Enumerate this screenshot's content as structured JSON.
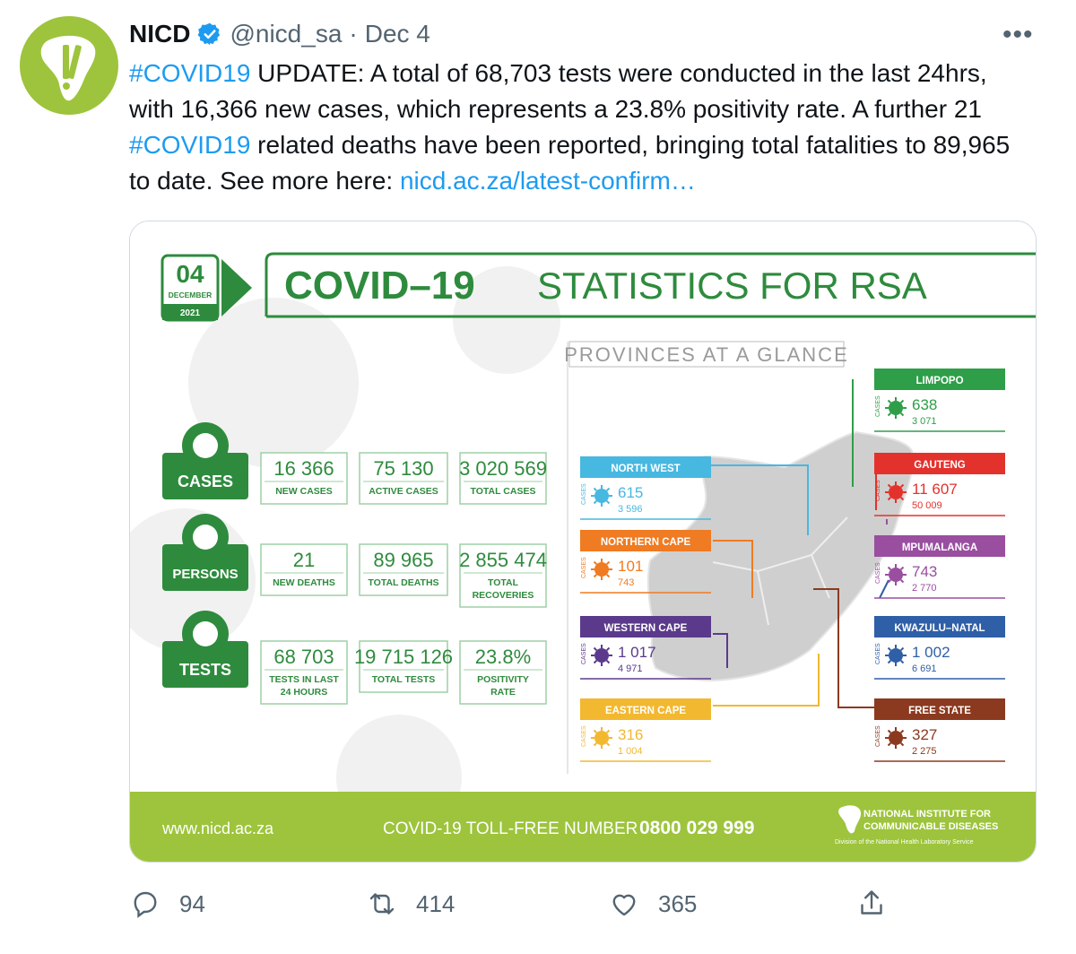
{
  "tweet": {
    "name": "NICD",
    "handle": "@nicd_sa",
    "separator": "·",
    "date": "Dec 4",
    "more": "•••",
    "text": {
      "hashtag1": "#COVID19",
      "part1": " UPDATE: A total of 68,703 tests were conducted in the last 24hrs, with 16,366 new cases, which represents a 23.8% positivity rate. A further 21 ",
      "hashtag2": "#COVID19",
      "part2": " related deaths have been reported, bringing total fatalities to 89,965 to date. See more here: ",
      "link": "nicd.ac.za/latest-confirm…"
    }
  },
  "infographic": {
    "date_day": "04",
    "date_month": "DECEMBER",
    "date_year": "2021",
    "title_bold": "COVID–19",
    "title_rest": "STATISTICS FOR RSA",
    "provinces_heading": "PROVINCES AT A GLANCE",
    "cases_side_label": "CASES",
    "groups": [
      {
        "label": "CASES",
        "stats": [
          {
            "value": "16 366",
            "label": "NEW CASES"
          },
          {
            "value": "75 130",
            "label": "ACTIVE CASES"
          },
          {
            "value": "3 020 569",
            "label": "TOTAL CASES"
          }
        ]
      },
      {
        "label": "PERSONS",
        "stats": [
          {
            "value": "21",
            "label": "NEW DEATHS"
          },
          {
            "value": "89 965",
            "label": "TOTAL DEATHS"
          },
          {
            "value": "2 855 474",
            "label": "TOTAL RECOVERIES"
          }
        ]
      },
      {
        "label": "TESTS",
        "stats": [
          {
            "value": "68 703",
            "label": "TESTS IN LAST 24 HOURS"
          },
          {
            "value": "19 715 126",
            "label": "TOTAL TESTS"
          },
          {
            "value": "23.8%",
            "label": "POSITIVITY RATE"
          }
        ]
      }
    ],
    "provinces": [
      {
        "name": "LIMPOPO",
        "cases": "638",
        "total": "3 071",
        "color": "#2e9e48"
      },
      {
        "name": "GAUTENG",
        "cases": "11 607",
        "total": "50 009",
        "color": "#e3322c"
      },
      {
        "name": "MPUMALANGA",
        "cases": "743",
        "total": "2 770",
        "color": "#9a4ea0"
      },
      {
        "name": "KWAZULU–NATAL",
        "cases": "1 002",
        "total": "6 691",
        "color": "#2f5fa6"
      },
      {
        "name": "FREE STATE",
        "cases": "327",
        "total": "2 275",
        "color": "#8b3a1f"
      },
      {
        "name": "NORTH WEST",
        "cases": "615",
        "total": "3 596",
        "color": "#47b8e0"
      },
      {
        "name": "NORTHERN CAPE",
        "cases": "101",
        "total": "743",
        "color": "#ef7b22"
      },
      {
        "name": "WESTERN CAPE",
        "cases": "1 017",
        "total": "4 971",
        "color": "#5b3a8c"
      },
      {
        "name": "EASTERN CAPE",
        "cases": "316",
        "total": "1 004",
        "color": "#f2b830"
      }
    ],
    "footer_url": "www.nicd.ac.za",
    "footer_tollfree_label": "COVID-19 TOLL-FREE NUMBER",
    "footer_tollfree_number": "0800 029 999",
    "org_line1": "NATIONAL INSTITUTE FOR",
    "org_line2": "COMMUNICABLE DISEASES",
    "org_division": "Division of the National Health Laboratory Service"
  },
  "actions": {
    "replies": "94",
    "retweets": "414",
    "likes": "365"
  },
  "colors": {
    "brand_green": "#2e8b3d",
    "footer_green": "#9dc43c",
    "twitter_blue": "#1d9bf0",
    "muted": "#536471"
  }
}
